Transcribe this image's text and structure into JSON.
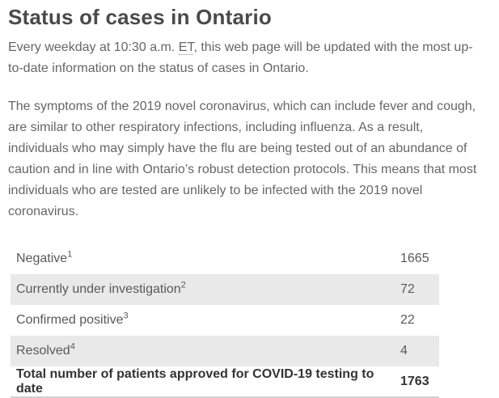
{
  "header": {
    "title": "Status of cases in Ontario"
  },
  "intro": {
    "before_abbr": "Every weekday at 10:30 a.m. ",
    "abbr": "ET",
    "after_abbr": ", this web page will be updated with the most up-to-date information on the status of cases in Ontario."
  },
  "paragraphs": {
    "symptoms": "The symptoms of the 2019 novel coronavirus, which can include fever and cough, are similar to other respiratory infections, including influenza. As a result, individuals who may simply have the flu are being tested out of an abundance of caution and in line with Ontario’s robust detection protocols. This means that most individuals who are tested are unlikely to be infected with the 2019 novel coronavirus."
  },
  "table": {
    "rows": [
      {
        "label": "Negative",
        "footnote": "1",
        "value": "1665"
      },
      {
        "label": "Currently under investigation",
        "footnote": "2",
        "value": "72"
      },
      {
        "label": "Confirmed positive",
        "footnote": "3",
        "value": "22"
      },
      {
        "label": "Resolved",
        "footnote": "4",
        "value": "4"
      }
    ],
    "total_row": {
      "label": "Total number of patients approved for COVID-19 testing to date",
      "value": "1763"
    }
  },
  "colors": {
    "heading_text": "#4a4a4a",
    "body_text": "#666666",
    "table_text": "#595959",
    "total_text": "#333333",
    "row_stripe": "#e9e9e9",
    "table_border": "#d2d2d2"
  }
}
